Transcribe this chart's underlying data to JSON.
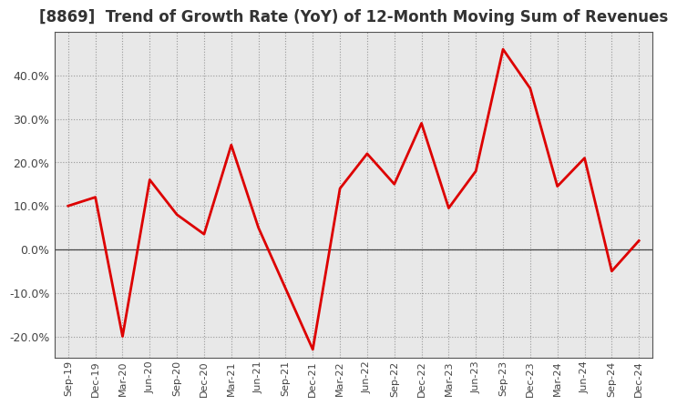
{
  "title": "[8869]  Trend of Growth Rate (YoY) of 12-Month Moving Sum of Revenues",
  "x_labels": [
    "Sep-19",
    "Dec-19",
    "Mar-20",
    "Jun-20",
    "Sep-20",
    "Dec-20",
    "Mar-21",
    "Jun-21",
    "Sep-21",
    "Dec-21",
    "Mar-22",
    "Jun-22",
    "Sep-22",
    "Dec-22",
    "Mar-23",
    "Jun-23",
    "Sep-23",
    "Dec-23",
    "Mar-24",
    "Jun-24",
    "Sep-24",
    "Dec-24"
  ],
  "y_values": [
    10.0,
    12.0,
    -20.0,
    16.0,
    8.0,
    3.5,
    24.0,
    5.0,
    -9.0,
    -23.0,
    14.0,
    22.0,
    15.0,
    29.0,
    9.5,
    18.0,
    46.0,
    37.0,
    14.5,
    21.0,
    -5.0,
    2.0
  ],
  "line_color": "#dd0000",
  "line_width": 2.0,
  "ylim": [
    -25,
    50
  ],
  "yticks": [
    -20.0,
    -10.0,
    0.0,
    10.0,
    20.0,
    30.0,
    40.0
  ],
  "grid_color": "#999999",
  "background_color": "#ffffff",
  "plot_bg_color": "#e8e8e8",
  "title_fontsize": 12,
  "zero_line_color": "#444444",
  "tick_label_color": "#444444"
}
